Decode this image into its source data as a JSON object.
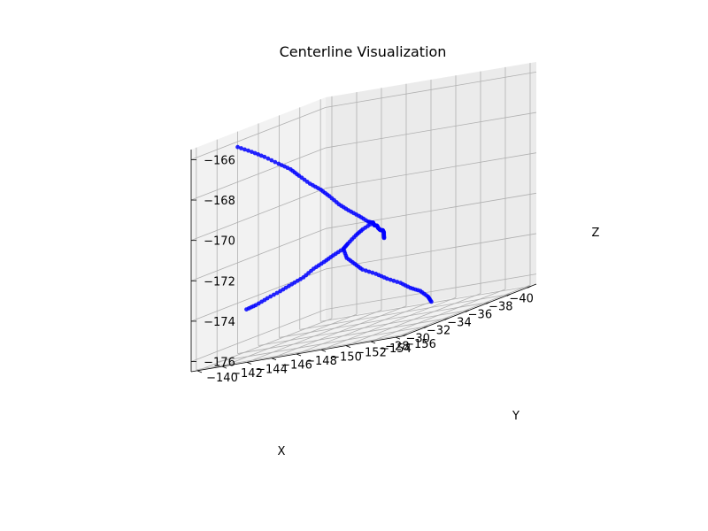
{
  "chart_data": {
    "type": "scatter",
    "projection": "3d",
    "title": "Centerline Visualization",
    "xlabel": "X",
    "ylabel": "Y",
    "zlabel": "Z",
    "xlim": [
      -40.5,
      -27.5
    ],
    "ylim": [
      -156.5,
      -139.5
    ],
    "zlim": [
      -176.5,
      -165.5
    ],
    "xticks": [
      -40,
      -38,
      -36,
      -34,
      -32,
      -30,
      -28
    ],
    "yticks": [
      -156,
      -154,
      -152,
      -150,
      -148,
      -146,
      -144,
      -142,
      -140
    ],
    "zticks": [
      -176,
      -174,
      -172,
      -170,
      -168,
      -166
    ],
    "grid": true,
    "marker_color": "#0000ff",
    "pane_colors": {
      "x": "#f2f2f2",
      "y": "#ebebeb",
      "z": "#f2f2f2"
    },
    "branches": [
      {
        "x": [
          -29.6,
          -30.0,
          -30.4,
          -30.8,
          -31.0,
          -31.1,
          -31.2,
          -31.3,
          -31.4,
          -31.6,
          -31.8,
          -32.1,
          -32.4,
          -32.5
        ],
        "y": [
          -141.5,
          -142.3,
          -143.0,
          -143.8,
          -144.6,
          -145.2,
          -146.0,
          -146.8,
          -147.4,
          -148.0,
          -148.6,
          -149.2,
          -149.7,
          -150.0
        ],
        "z": [
          -166.0,
          -166.4,
          -166.8,
          -167.3,
          -167.7,
          -168.1,
          -168.6,
          -169.0,
          -169.4,
          -169.9,
          -170.3,
          -170.7,
          -171.1,
          -171.2
        ]
      },
      {
        "x": [
          -32.5,
          -32.1,
          -31.8,
          -31.4,
          -31.2,
          -31.4,
          -31.8,
          -32.2,
          -32.9,
          -33.5,
          -34.2,
          -34.8,
          -35.4,
          -35.9,
          -36.1
        ],
        "y": [
          -150.0,
          -149.5,
          -149.2,
          -148.9,
          -148.7,
          -148.8,
          -149.1,
          -149.4,
          -149.9,
          -150.3,
          -150.8,
          -151.1,
          -151.4,
          -151.6,
          -151.7
        ],
        "z": [
          -171.2,
          -171.4,
          -171.6,
          -171.9,
          -172.1,
          -172.6,
          -173.0,
          -173.4,
          -173.8,
          -174.2,
          -174.6,
          -175.0,
          -175.3,
          -175.7,
          -176.0
        ]
      },
      {
        "x": [
          -32.5,
          -33.0,
          -33.6,
          -34.2,
          -34.9,
          -35.6,
          -36.3,
          -36.9,
          -37.4
        ],
        "y": [
          -150.0,
          -149.7,
          -149.4,
          -149.0,
          -148.6,
          -148.2,
          -147.7,
          -147.2,
          -146.8
        ],
        "z": [
          -171.2,
          -171.4,
          -171.5,
          -171.7,
          -171.9,
          -172.0,
          -172.2,
          -172.4,
          -172.6
        ]
      },
      {
        "x": [
          -31.2,
          -30.8,
          -30.4,
          -30.0,
          -29.6,
          -29.2,
          -28.8,
          -28.4,
          -28.0,
          -27.7
        ],
        "y": [
          -148.7,
          -148.2,
          -147.8,
          -147.3,
          -146.8,
          -146.2,
          -145.6,
          -144.9,
          -144.3,
          -143.8
        ],
        "z": [
          -172.1,
          -172.3,
          -172.5,
          -172.7,
          -173.0,
          -173.2,
          -173.4,
          -173.6,
          -173.8,
          -173.9
        ]
      }
    ]
  }
}
